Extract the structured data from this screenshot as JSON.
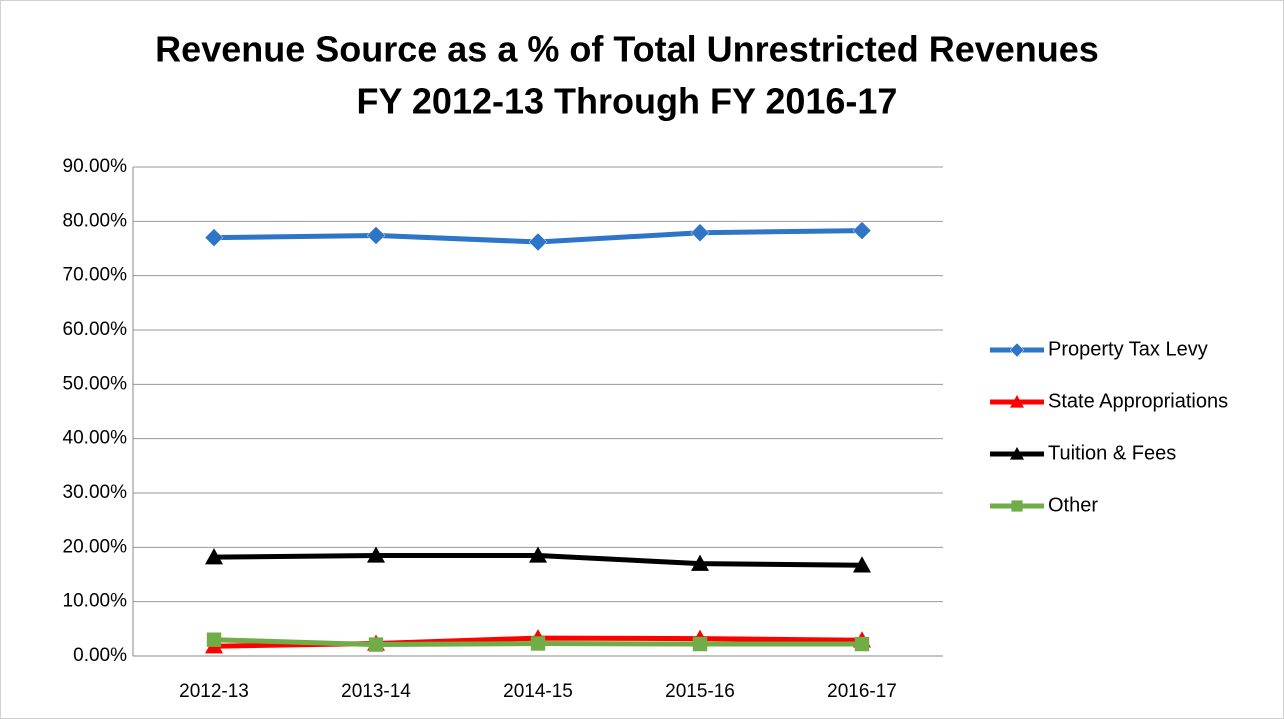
{
  "chart_data": {
    "type": "line",
    "title": "Revenue Source as a % of Total Unrestricted Revenues",
    "subtitle": "FY 2012-13 Through FY 2016-17",
    "categories": [
      "2012-13",
      "2013-14",
      "2014-15",
      "2015-16",
      "2016-17"
    ],
    "series": [
      {
        "name": "Property Tax Levy",
        "color": "#2e75c8",
        "marker": "diamond",
        "values": [
          77.0,
          77.4,
          76.2,
          77.9,
          78.3
        ]
      },
      {
        "name": "State Appropriations",
        "color": "#ff0000",
        "marker": "triangle",
        "values": [
          1.8,
          2.3,
          3.3,
          3.2,
          2.9
        ]
      },
      {
        "name": "Tuition & Fees",
        "color": "#000000",
        "marker": "triangle",
        "values": [
          18.2,
          18.5,
          18.5,
          17.0,
          16.7
        ]
      },
      {
        "name": "Other",
        "color": "#70ad47",
        "marker": "square",
        "values": [
          3.0,
          2.1,
          2.3,
          2.2,
          2.2
        ]
      }
    ],
    "ylim": [
      0,
      90
    ],
    "yticks": [
      {
        "value": 0,
        "label": "0.00%"
      },
      {
        "value": 10,
        "label": "10.00%"
      },
      {
        "value": 20,
        "label": "20.00%"
      },
      {
        "value": 30,
        "label": "30.00%"
      },
      {
        "value": 40,
        "label": "40.00%"
      },
      {
        "value": 50,
        "label": "50.00%"
      },
      {
        "value": 60,
        "label": "60.00%"
      },
      {
        "value": 70,
        "label": "70.00%"
      },
      {
        "value": 80,
        "label": "80.00%"
      },
      {
        "value": 90,
        "label": "90.00%"
      }
    ],
    "grid": true,
    "legend": "right"
  }
}
